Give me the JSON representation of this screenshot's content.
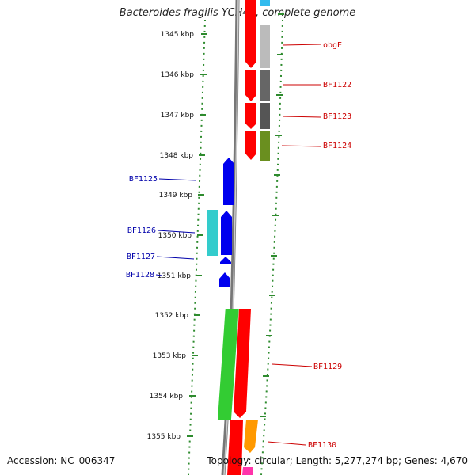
{
  "title": "Bacteroides fragilis YCH46, complete genome",
  "footer": {
    "accession": "Accession: NC_006347",
    "topology": "Topology: circular; Length: 5,277,274 bp; Genes: 4,670"
  },
  "position_labels": [
    "1345 kbp",
    "1346 kbp",
    "1347 kbp",
    "1348 kbp",
    "1349 kbp",
    "1350 kbp",
    "1351 kbp",
    "1352 kbp",
    "1353 kbp",
    "1354 kbp",
    "1355 kbp"
  ],
  "genes": [
    {
      "id": "obgE",
      "strand": "forward",
      "color": "#ff0000",
      "name_color": "#cc0000"
    },
    {
      "id": "BF1122",
      "strand": "forward",
      "color": "#ff0000",
      "name_color": "#cc0000"
    },
    {
      "id": "BF1123",
      "strand": "forward",
      "color": "#ff0000",
      "name_color": "#cc0000"
    },
    {
      "id": "BF1124",
      "strand": "forward",
      "color": "#ff0000",
      "name_color": "#cc0000"
    },
    {
      "id": "BF1125",
      "strand": "reverse",
      "color": "#0000ee",
      "name_color": "#0000aa"
    },
    {
      "id": "BF1126",
      "strand": "reverse",
      "color": "#0000ee",
      "name_color": "#0000aa"
    },
    {
      "id": "BF1127",
      "strand": "reverse",
      "color": "#0000ee",
      "name_color": "#0000aa"
    },
    {
      "id": "BF1128",
      "strand": "reverse",
      "color": "#0000ee",
      "name_color": "#0000aa"
    },
    {
      "id": "BF1129",
      "strand": "forward",
      "color": "#ff0000",
      "name_color": "#cc0000"
    },
    {
      "id": "BF1130",
      "strand": "forward",
      "color": "#ff0000",
      "name_color": "#cc0000"
    }
  ],
  "colors": {
    "backbone": "#888888",
    "ring_dots": "#228b22",
    "cyan_feature": "#33cccc",
    "green_feature": "#33cc33",
    "orange_feature": "#ff9900",
    "magenta_feature": "#ff33aa",
    "olive_feature": "#669922",
    "grey_feature": "#666666",
    "light_grey_feature": "#bbbbbb",
    "sky_feature": "#33bbee"
  }
}
